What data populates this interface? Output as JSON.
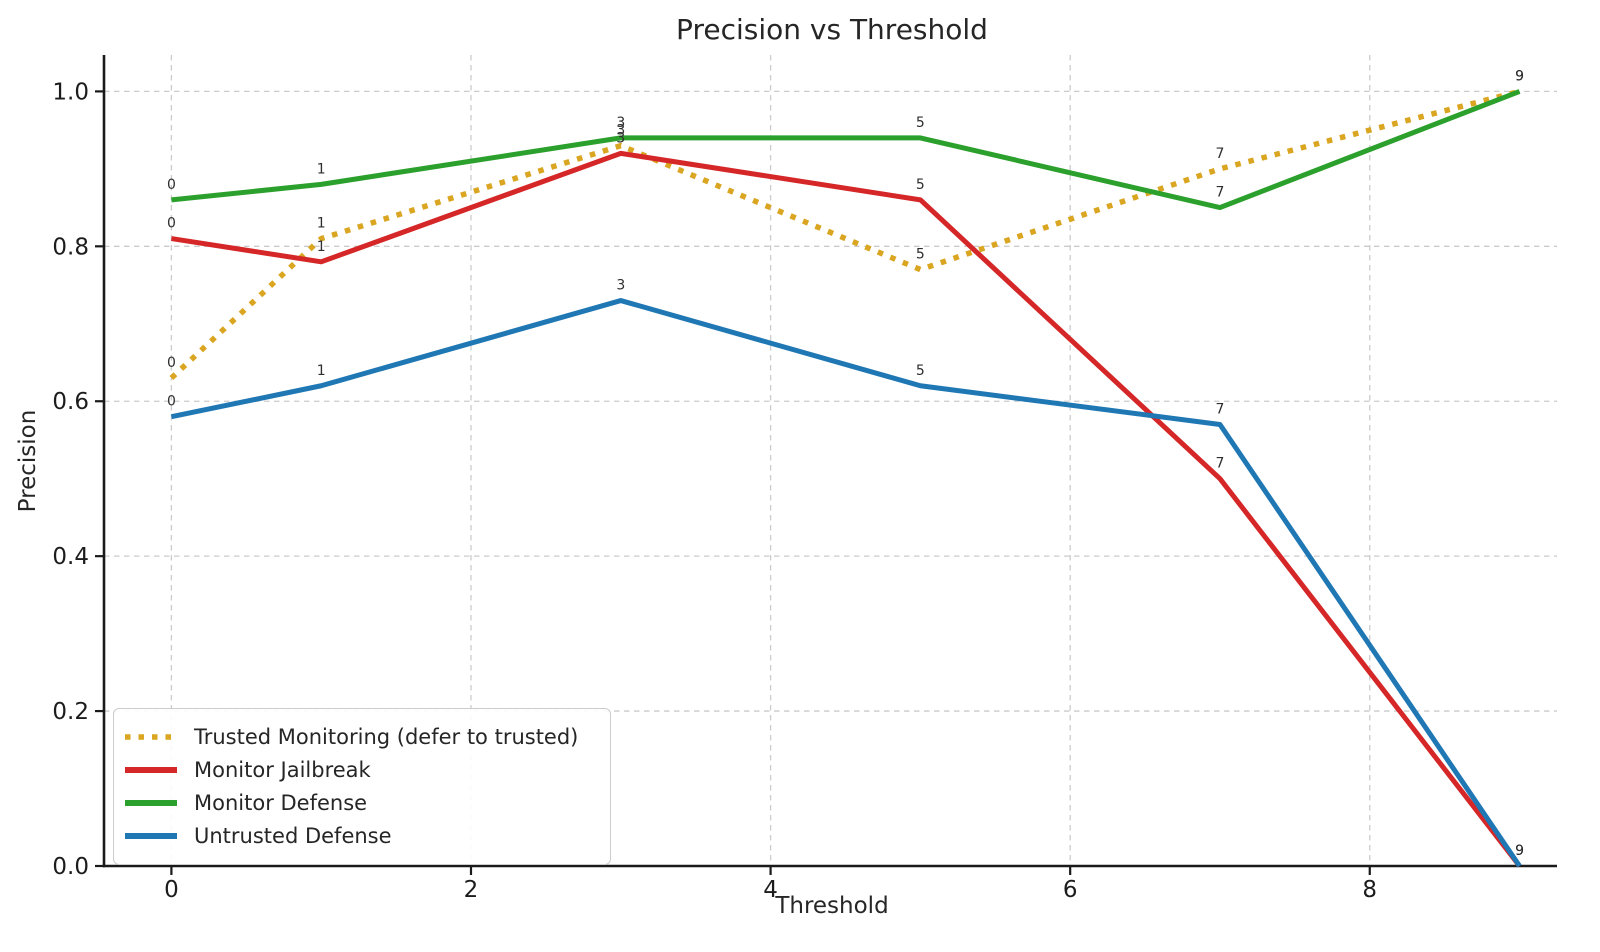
{
  "chart_data": {
    "type": "line",
    "title": "Precision vs Threshold",
    "xlabel": "Threshold",
    "ylabel": "Precision",
    "x": [
      0,
      1,
      3,
      5,
      7,
      9
    ],
    "series": [
      {
        "name": "Trusted Monitoring (defer to trusted)",
        "color": "#DAA520",
        "line_style": "dotted",
        "values": [
          0.63,
          0.81,
          0.93,
          0.77,
          0.9,
          1.0
        ]
      },
      {
        "name": "Monitor Jailbreak",
        "color": "#D62728",
        "line_style": "solid",
        "values": [
          0.81,
          0.78,
          0.92,
          0.86,
          0.5,
          0.0
        ]
      },
      {
        "name": "Monitor Defense",
        "color": "#2CA02C",
        "line_style": "solid",
        "values": [
          0.86,
          0.88,
          0.94,
          0.94,
          0.85,
          1.0
        ]
      },
      {
        "name": "Untrusted Defense",
        "color": "#1F77B4",
        "line_style": "solid",
        "values": [
          0.58,
          0.62,
          0.73,
          0.62,
          0.57,
          0.0
        ]
      }
    ],
    "x_ticks": [
      0,
      2,
      4,
      6,
      8
    ],
    "y_ticks": [
      0.0,
      0.2,
      0.4,
      0.6,
      0.8,
      1.0
    ],
    "y_tick_labels": [
      "0.0",
      "0.2",
      "0.4",
      "0.6",
      "0.8",
      "1.0"
    ],
    "xlim": [
      -0.45,
      9.25
    ],
    "ylim": [
      0,
      1.047
    ],
    "grid": true,
    "legend_position": "lower left",
    "point_labels": "each point annotated with its x value"
  }
}
